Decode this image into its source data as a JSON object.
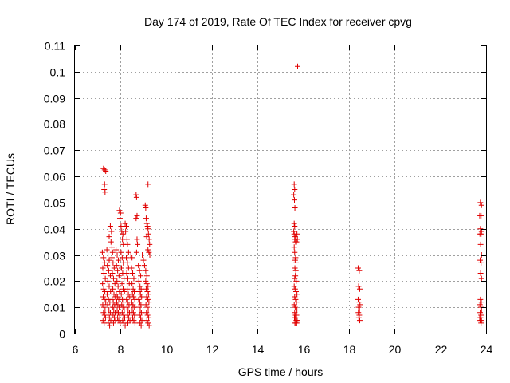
{
  "chart_data": {
    "type": "scatter",
    "title": "Day 174 of 2019, Rate Of TEC Index for receiver cpvg",
    "xlabel": "GPS time / hours",
    "ylabel": "ROTI / TECUs",
    "xlim": [
      6,
      24
    ],
    "ylim": [
      0,
      0.11
    ],
    "xticks": [
      "6",
      "8",
      "10",
      "12",
      "14",
      "16",
      "18",
      "20",
      "22",
      "24"
    ],
    "yticks": [
      "0",
      "0.01",
      "0.02",
      "0.03",
      "0.04",
      "0.05",
      "0.06",
      "0.07",
      "0.08",
      "0.09",
      "0.1",
      "0.11"
    ],
    "grid": true,
    "marker": "+",
    "color": "#e00000",
    "series": [
      {
        "points": [
          [
            7.25,
            0.063
          ],
          [
            7.3,
            0.0625
          ],
          [
            7.35,
            0.062
          ],
          [
            7.3,
            0.057
          ],
          [
            7.28,
            0.055
          ],
          [
            7.32,
            0.054
          ],
          [
            7.2,
            0.031
          ],
          [
            7.25,
            0.029
          ],
          [
            7.3,
            0.027
          ],
          [
            7.22,
            0.025
          ],
          [
            7.27,
            0.023
          ],
          [
            7.33,
            0.021
          ],
          [
            7.21,
            0.019
          ],
          [
            7.26,
            0.017
          ],
          [
            7.31,
            0.016
          ],
          [
            7.24,
            0.014
          ],
          [
            7.29,
            0.013
          ],
          [
            7.35,
            0.012
          ],
          [
            7.22,
            0.011
          ],
          [
            7.27,
            0.01
          ],
          [
            7.32,
            0.009
          ],
          [
            7.25,
            0.008
          ],
          [
            7.3,
            0.007
          ],
          [
            7.34,
            0.006
          ],
          [
            7.23,
            0.005
          ],
          [
            7.28,
            0.004
          ],
          [
            7.4,
            0.032
          ],
          [
            7.45,
            0.03
          ],
          [
            7.5,
            0.028
          ],
          [
            7.42,
            0.026
          ],
          [
            7.48,
            0.024
          ],
          [
            7.55,
            0.022
          ],
          [
            7.44,
            0.02
          ],
          [
            7.5,
            0.018
          ],
          [
            7.56,
            0.016
          ],
          [
            7.41,
            0.015
          ],
          [
            7.47,
            0.013
          ],
          [
            7.53,
            0.012
          ],
          [
            7.43,
            0.011
          ],
          [
            7.49,
            0.009
          ],
          [
            7.55,
            0.008
          ],
          [
            7.45,
            0.007
          ],
          [
            7.51,
            0.006
          ],
          [
            7.57,
            0.005
          ],
          [
            7.46,
            0.004
          ],
          [
            7.52,
            0.003
          ],
          [
            7.55,
            0.041
          ],
          [
            7.6,
            0.039
          ],
          [
            7.5,
            0.037
          ],
          [
            7.58,
            0.035
          ],
          [
            7.62,
            0.033
          ],
          [
            7.65,
            0.031
          ],
          [
            7.62,
            0.029
          ],
          [
            7.67,
            0.027
          ],
          [
            7.72,
            0.025
          ],
          [
            7.64,
            0.023
          ],
          [
            7.69,
            0.021
          ],
          [
            7.75,
            0.019
          ],
          [
            7.66,
            0.017
          ],
          [
            7.71,
            0.015
          ],
          [
            7.77,
            0.014
          ],
          [
            7.63,
            0.013
          ],
          [
            7.68,
            0.012
          ],
          [
            7.74,
            0.011
          ],
          [
            7.65,
            0.01
          ],
          [
            7.7,
            0.009
          ],
          [
            7.76,
            0.008
          ],
          [
            7.67,
            0.007
          ],
          [
            7.73,
            0.006
          ],
          [
            7.78,
            0.005
          ],
          [
            7.69,
            0.004
          ],
          [
            7.8,
            0.032
          ],
          [
            7.85,
            0.03
          ],
          [
            7.9,
            0.028
          ],
          [
            7.82,
            0.026
          ],
          [
            7.87,
            0.024
          ],
          [
            7.93,
            0.022
          ],
          [
            7.84,
            0.02
          ],
          [
            7.89,
            0.018
          ],
          [
            7.95,
            0.016
          ],
          [
            7.81,
            0.015
          ],
          [
            7.86,
            0.014
          ],
          [
            7.92,
            0.013
          ],
          [
            7.83,
            0.012
          ],
          [
            7.88,
            0.011
          ],
          [
            7.94,
            0.01
          ],
          [
            7.85,
            0.009
          ],
          [
            7.9,
            0.008
          ],
          [
            7.96,
            0.007
          ],
          [
            7.87,
            0.006
          ],
          [
            7.92,
            0.005
          ],
          [
            7.98,
            0.004
          ],
          [
            7.95,
            0.047
          ],
          [
            8.0,
            0.046
          ],
          [
            7.97,
            0.044
          ],
          [
            8.02,
            0.041
          ],
          [
            8.05,
            0.039
          ],
          [
            8.1,
            0.038
          ],
          [
            8.08,
            0.036
          ],
          [
            8.12,
            0.034
          ],
          [
            8.02,
            0.031
          ],
          [
            8.07,
            0.029
          ],
          [
            8.12,
            0.027
          ],
          [
            8.04,
            0.025
          ],
          [
            8.09,
            0.023
          ],
          [
            8.15,
            0.021
          ],
          [
            8.06,
            0.019
          ],
          [
            8.11,
            0.017
          ],
          [
            8.17,
            0.016
          ],
          [
            8.03,
            0.015
          ],
          [
            8.08,
            0.013
          ],
          [
            8.14,
            0.012
          ],
          [
            8.05,
            0.011
          ],
          [
            8.1,
            0.01
          ],
          [
            8.16,
            0.009
          ],
          [
            8.07,
            0.008
          ],
          [
            8.13,
            0.007
          ],
          [
            8.18,
            0.006
          ],
          [
            8.09,
            0.005
          ],
          [
            8.14,
            0.004
          ],
          [
            8.2,
            0.003
          ],
          [
            8.2,
            0.042
          ],
          [
            8.25,
            0.041
          ],
          [
            8.22,
            0.039
          ],
          [
            8.28,
            0.036
          ],
          [
            8.3,
            0.034
          ],
          [
            8.25,
            0.029
          ],
          [
            8.3,
            0.027
          ],
          [
            8.35,
            0.025
          ],
          [
            8.27,
            0.023
          ],
          [
            8.32,
            0.021
          ],
          [
            8.38,
            0.019
          ],
          [
            8.29,
            0.017
          ],
          [
            8.34,
            0.015
          ],
          [
            8.4,
            0.014
          ],
          [
            8.26,
            0.013
          ],
          [
            8.31,
            0.012
          ],
          [
            8.37,
            0.011
          ],
          [
            8.28,
            0.01
          ],
          [
            8.33,
            0.009
          ],
          [
            8.39,
            0.008
          ],
          [
            8.3,
            0.007
          ],
          [
            8.35,
            0.006
          ],
          [
            8.41,
            0.005
          ],
          [
            8.32,
            0.004
          ],
          [
            8.35,
            0.031
          ],
          [
            8.45,
            0.03
          ],
          [
            8.5,
            0.029
          ],
          [
            8.48,
            0.025
          ],
          [
            8.53,
            0.023
          ],
          [
            8.58,
            0.021
          ],
          [
            8.5,
            0.019
          ],
          [
            8.55,
            0.017
          ],
          [
            8.6,
            0.016
          ],
          [
            8.52,
            0.015
          ],
          [
            8.57,
            0.014
          ],
          [
            8.62,
            0.013
          ],
          [
            8.49,
            0.012
          ],
          [
            8.54,
            0.011
          ],
          [
            8.59,
            0.01
          ],
          [
            8.51,
            0.009
          ],
          [
            8.56,
            0.008
          ],
          [
            8.61,
            0.007
          ],
          [
            8.53,
            0.006
          ],
          [
            8.58,
            0.005
          ],
          [
            8.63,
            0.004
          ],
          [
            8.68,
            0.053
          ],
          [
            8.7,
            0.052
          ],
          [
            8.72,
            0.045
          ],
          [
            8.68,
            0.044
          ],
          [
            8.72,
            0.036
          ],
          [
            8.74,
            0.034
          ],
          [
            8.7,
            0.031
          ],
          [
            8.78,
            0.026
          ],
          [
            8.83,
            0.024
          ],
          [
            8.88,
            0.022
          ],
          [
            8.8,
            0.02
          ],
          [
            8.85,
            0.018
          ],
          [
            8.9,
            0.017
          ],
          [
            8.82,
            0.016
          ],
          [
            8.87,
            0.015
          ],
          [
            8.92,
            0.014
          ],
          [
            8.79,
            0.013
          ],
          [
            8.84,
            0.012
          ],
          [
            8.89,
            0.011
          ],
          [
            8.81,
            0.01
          ],
          [
            8.86,
            0.009
          ],
          [
            8.91,
            0.008
          ],
          [
            8.83,
            0.007
          ],
          [
            8.88,
            0.006
          ],
          [
            8.93,
            0.005
          ],
          [
            8.85,
            0.004
          ],
          [
            8.9,
            0.003
          ],
          [
            8.95,
            0.03
          ],
          [
            9.0,
            0.028
          ],
          [
            9.05,
            0.026
          ],
          [
            9.1,
            0.024
          ],
          [
            9.15,
            0.022
          ],
          [
            9.08,
            0.049
          ],
          [
            9.1,
            0.048
          ],
          [
            9.12,
            0.044
          ],
          [
            9.15,
            0.042
          ],
          [
            9.18,
            0.041
          ],
          [
            9.2,
            0.04
          ],
          [
            9.22,
            0.038
          ],
          [
            9.14,
            0.037
          ],
          [
            9.25,
            0.036
          ],
          [
            9.27,
            0.034
          ],
          [
            9.2,
            0.032
          ],
          [
            9.24,
            0.031
          ],
          [
            9.28,
            0.03
          ],
          [
            9.2,
            0.057
          ],
          [
            9.1,
            0.02
          ],
          [
            9.15,
            0.019
          ],
          [
            9.2,
            0.018
          ],
          [
            9.12,
            0.017
          ],
          [
            9.17,
            0.016
          ],
          [
            9.22,
            0.015
          ],
          [
            9.14,
            0.014
          ],
          [
            9.19,
            0.013
          ],
          [
            9.24,
            0.012
          ],
          [
            9.11,
            0.011
          ],
          [
            9.16,
            0.01
          ],
          [
            9.21,
            0.009
          ],
          [
            9.13,
            0.008
          ],
          [
            9.18,
            0.007
          ],
          [
            9.23,
            0.006
          ],
          [
            9.15,
            0.005
          ],
          [
            9.2,
            0.004
          ],
          [
            9.25,
            0.003
          ],
          [
            15.6,
            0.057
          ],
          [
            15.62,
            0.055
          ],
          [
            15.58,
            0.053
          ],
          [
            15.61,
            0.051
          ],
          [
            15.63,
            0.048
          ],
          [
            15.6,
            0.042
          ],
          [
            15.62,
            0.041
          ],
          [
            15.58,
            0.039
          ],
          [
            15.6,
            0.038
          ],
          [
            15.64,
            0.037
          ],
          [
            15.62,
            0.036
          ],
          [
            15.66,
            0.035
          ],
          [
            15.7,
            0.035
          ],
          [
            15.74,
            0.036
          ],
          [
            15.72,
            0.038
          ],
          [
            15.6,
            0.033
          ],
          [
            15.62,
            0.031
          ],
          [
            15.66,
            0.029
          ],
          [
            15.64,
            0.028
          ],
          [
            15.68,
            0.027
          ],
          [
            15.63,
            0.025
          ],
          [
            15.67,
            0.024
          ],
          [
            15.65,
            0.022
          ],
          [
            15.62,
            0.021
          ],
          [
            15.69,
            0.02
          ],
          [
            15.6,
            0.018
          ],
          [
            15.64,
            0.017
          ],
          [
            15.68,
            0.016
          ],
          [
            15.72,
            0.015
          ],
          [
            15.62,
            0.014
          ],
          [
            15.66,
            0.013
          ],
          [
            15.7,
            0.012
          ],
          [
            15.6,
            0.011
          ],
          [
            15.64,
            0.01
          ],
          [
            15.68,
            0.009
          ],
          [
            15.72,
            0.009
          ],
          [
            15.62,
            0.008
          ],
          [
            15.66,
            0.007
          ],
          [
            15.7,
            0.007
          ],
          [
            15.61,
            0.006
          ],
          [
            15.65,
            0.006
          ],
          [
            15.69,
            0.005
          ],
          [
            15.73,
            0.005
          ],
          [
            15.63,
            0.004
          ],
          [
            15.67,
            0.004
          ],
          [
            15.71,
            0.004
          ],
          [
            15.75,
            0.102
          ],
          [
            18.4,
            0.025
          ],
          [
            18.45,
            0.024
          ],
          [
            18.42,
            0.018
          ],
          [
            18.47,
            0.017
          ],
          [
            18.4,
            0.013
          ],
          [
            18.44,
            0.012
          ],
          [
            18.48,
            0.011
          ],
          [
            18.42,
            0.01
          ],
          [
            18.46,
            0.009
          ],
          [
            18.41,
            0.008
          ],
          [
            18.45,
            0.007
          ],
          [
            18.43,
            0.006
          ],
          [
            18.47,
            0.005
          ],
          [
            23.75,
            0.05
          ],
          [
            23.8,
            0.049
          ],
          [
            23.72,
            0.045
          ],
          [
            23.78,
            0.045
          ],
          [
            23.75,
            0.04
          ],
          [
            23.8,
            0.039
          ],
          [
            23.73,
            0.038
          ],
          [
            23.78,
            0.038
          ],
          [
            23.76,
            0.034
          ],
          [
            23.8,
            0.03
          ],
          [
            23.74,
            0.028
          ],
          [
            23.78,
            0.027
          ],
          [
            23.76,
            0.023
          ],
          [
            23.8,
            0.021
          ],
          [
            23.75,
            0.013
          ],
          [
            23.79,
            0.012
          ],
          [
            23.73,
            0.011
          ],
          [
            23.77,
            0.01
          ],
          [
            23.8,
            0.009
          ],
          [
            23.74,
            0.008
          ],
          [
            23.78,
            0.007
          ],
          [
            23.72,
            0.006
          ],
          [
            23.76,
            0.006
          ],
          [
            23.8,
            0.005
          ],
          [
            23.74,
            0.005
          ],
          [
            23.78,
            0.004
          ]
        ]
      }
    ]
  }
}
